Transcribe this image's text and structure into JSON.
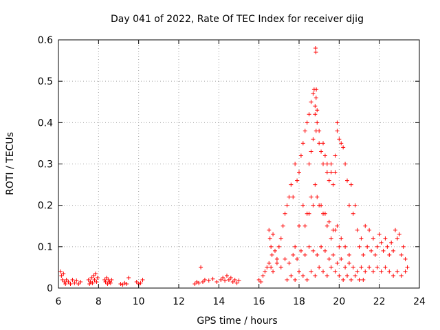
{
  "chart_data": {
    "type": "scatter",
    "title": "Day 041 of 2022, Rate Of TEC Index for receiver djig",
    "xlabel": "GPS time / hours",
    "ylabel": "ROTI / TECUs",
    "xlim": [
      6,
      24
    ],
    "ylim": [
      0,
      0.6
    ],
    "xticks": [
      6,
      8,
      10,
      12,
      14,
      16,
      18,
      20,
      22,
      24
    ],
    "yticks": [
      0,
      0.1,
      0.2,
      0.3,
      0.4,
      0.5,
      0.6
    ],
    "xtick_labels": [
      "6",
      "8",
      "10",
      "12",
      "14",
      "16",
      "18",
      "20",
      "22",
      "24"
    ],
    "ytick_labels": [
      "0",
      "0.1",
      "0.2",
      "0.3",
      "0.4",
      "0.5",
      "0.6"
    ],
    "grid": true,
    "marker": "plus",
    "color": "#ff0000",
    "series": [
      {
        "x": [
          6.1,
          6.15,
          6.2,
          6.25,
          6.3,
          6.35,
          6.4,
          6.5,
          6.6,
          6.7,
          6.8,
          6.9,
          7.0,
          7.1,
          7.5,
          7.55,
          7.6,
          7.65,
          7.7,
          7.75,
          7.8,
          7.85,
          7.9,
          7.95,
          8.3,
          8.35,
          8.4,
          8.45,
          8.5,
          8.55,
          8.6,
          8.65,
          9.1,
          9.2,
          9.3,
          9.4,
          9.5,
          9.9,
          10.0,
          10.1,
          10.2,
          12.8,
          12.9,
          13.0,
          13.1,
          13.2,
          13.3,
          13.5,
          13.7,
          13.9,
          14.1,
          14.2,
          14.3,
          14.4,
          14.5,
          14.6,
          14.7,
          14.8,
          14.9,
          15.0,
          16.0,
          16.1,
          16.2,
          16.3,
          16.4,
          16.5,
          16.5,
          16.55,
          16.6,
          16.65,
          16.7,
          16.8,
          16.9,
          17.0,
          17.1,
          17.2,
          17.3,
          17.4,
          17.5,
          17.6,
          17.7,
          17.8,
          17.9,
          18.0,
          18.1,
          18.2,
          18.3,
          18.4,
          18.5,
          18.6,
          18.7,
          18.75,
          18.8,
          18.85,
          18.9,
          19.0,
          19.1,
          19.2,
          19.3,
          19.4,
          19.5,
          19.6,
          19.7,
          19.8,
          19.9,
          20.0,
          20.1,
          20.2,
          20.3,
          20.4,
          20.5,
          20.6,
          20.7,
          20.8,
          20.9,
          21.0,
          21.1,
          21.2,
          21.3,
          21.4,
          21.5,
          21.6,
          21.7,
          21.8,
          21.9,
          22.0,
          22.1,
          22.2,
          22.3,
          22.4,
          22.5,
          22.6,
          22.7,
          22.8,
          22.9,
          23.0,
          23.1,
          23.2,
          23.3,
          23.4,
          16.6,
          16.7,
          16.9,
          17.1,
          17.3,
          17.5,
          17.7,
          17.9,
          18.1,
          18.3,
          18.5,
          18.7,
          18.9,
          19.1,
          19.3,
          19.5,
          19.7,
          19.9,
          20.1,
          20.3,
          20.5,
          20.7,
          20.9,
          21.1,
          21.3,
          21.5,
          21.7,
          21.9,
          22.1,
          22.3,
          22.5,
          22.7,
          22.9,
          23.1,
          23.3,
          17.4,
          17.6,
          17.8,
          18.0,
          18.2,
          18.4,
          18.6,
          18.8,
          19.0,
          19.2,
          19.4,
          19.6,
          19.8,
          20.0,
          20.2,
          20.4,
          20.6,
          20.8,
          21.0,
          21.2,
          17.8,
          18.0,
          18.2,
          18.4,
          18.6,
          18.8,
          19.0,
          19.2,
          19.4,
          19.6,
          19.8,
          20.0,
          18.3,
          18.5,
          18.7,
          18.9,
          19.1,
          19.3,
          19.5,
          19.7,
          19.9,
          20.1,
          20.3,
          20.5,
          18.5,
          18.6,
          18.7,
          18.8,
          18.85,
          18.9,
          19.0,
          19.2,
          19.4,
          19.6,
          19.8,
          19.9,
          18.82,
          18.84,
          18.86
        ],
        "y": [
          0.04,
          0.03,
          0.02,
          0.035,
          0.015,
          0.01,
          0.02,
          0.015,
          0.01,
          0.02,
          0.012,
          0.018,
          0.01,
          0.015,
          0.02,
          0.01,
          0.015,
          0.025,
          0.012,
          0.03,
          0.02,
          0.035,
          0.015,
          0.025,
          0.02,
          0.015,
          0.025,
          0.01,
          0.02,
          0.015,
          0.012,
          0.02,
          0.01,
          0.008,
          0.012,
          0.01,
          0.025,
          0.015,
          0.01,
          0.012,
          0.02,
          0.01,
          0.015,
          0.012,
          0.05,
          0.015,
          0.02,
          0.018,
          0.022,
          0.015,
          0.02,
          0.025,
          0.018,
          0.03,
          0.02,
          0.025,
          0.015,
          0.02,
          0.012,
          0.018,
          0.02,
          0.015,
          0.03,
          0.04,
          0.05,
          0.06,
          0.14,
          0.12,
          0.1,
          0.08,
          0.13,
          0.09,
          0.07,
          0.1,
          0.12,
          0.15,
          0.18,
          0.2,
          0.22,
          0.25,
          0.22,
          0.3,
          0.26,
          0.28,
          0.32,
          0.35,
          0.38,
          0.4,
          0.42,
          0.45,
          0.47,
          0.48,
          0.42,
          0.38,
          0.4,
          0.35,
          0.33,
          0.3,
          0.32,
          0.28,
          0.26,
          0.3,
          0.25,
          0.28,
          0.4,
          0.36,
          0.35,
          0.34,
          0.3,
          0.26,
          0.2,
          0.25,
          0.18,
          0.2,
          0.14,
          0.1,
          0.12,
          0.08,
          0.15,
          0.1,
          0.14,
          0.09,
          0.12,
          0.08,
          0.1,
          0.13,
          0.11,
          0.09,
          0.12,
          0.1,
          0.08,
          0.11,
          0.09,
          0.14,
          0.12,
          0.13,
          0.08,
          0.1,
          0.07,
          0.05,
          0.05,
          0.04,
          0.06,
          0.05,
          0.07,
          0.06,
          0.08,
          0.07,
          0.09,
          0.08,
          0.1,
          0.09,
          0.08,
          0.1,
          0.09,
          0.07,
          0.08,
          0.06,
          0.07,
          0.05,
          0.06,
          0.05,
          0.04,
          0.05,
          0.04,
          0.05,
          0.04,
          0.05,
          0.04,
          0.05,
          0.04,
          0.03,
          0.04,
          0.03,
          0.04,
          0.02,
          0.03,
          0.02,
          0.04,
          0.03,
          0.02,
          0.04,
          0.03,
          0.05,
          0.04,
          0.03,
          0.05,
          0.04,
          0.03,
          0.02,
          0.03,
          0.02,
          0.03,
          0.02,
          0.02,
          0.1,
          0.15,
          0.2,
          0.18,
          0.22,
          0.25,
          0.2,
          0.18,
          0.15,
          0.12,
          0.14,
          0.1,
          0.15,
          0.18,
          0.2,
          0.22,
          0.2,
          0.18,
          0.16,
          0.14,
          0.15,
          0.12,
          0.1,
          0.08,
          0.3,
          0.33,
          0.36,
          0.44,
          0.46,
          0.43,
          0.38,
          0.35,
          0.3,
          0.28,
          0.32,
          0.38,
          0.58,
          0.57,
          0.48
        ]
      }
    ]
  }
}
